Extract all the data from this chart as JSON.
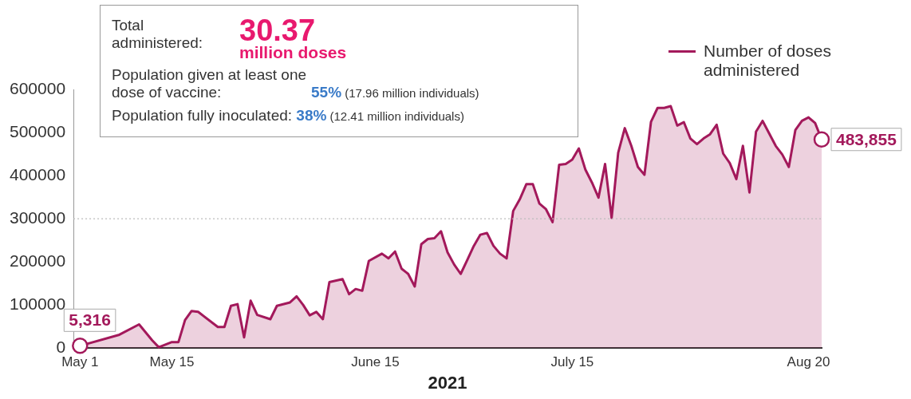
{
  "chart_data": {
    "type": "area",
    "xlabel": "2021",
    "xlim": [
      "2021-04-30",
      "2021-08-22"
    ],
    "xticks": [
      {
        "value": "2021-05-01",
        "label": "May 1"
      },
      {
        "value": "2021-05-15",
        "label": "May 15"
      },
      {
        "value": "2021-06-15",
        "label": "June 15"
      },
      {
        "value": "2021-07-15",
        "label": "July 15"
      },
      {
        "value": "2021-08-20",
        "label": "Aug 20"
      }
    ],
    "ylim": [
      0,
      600000
    ],
    "yticks": [
      0,
      100000,
      200000,
      300000,
      400000,
      500000,
      600000
    ],
    "grid": false,
    "legend": "top right",
    "marker": "none",
    "line_style": "solid",
    "ref_lines": [
      {
        "axis": "y",
        "value": 300000,
        "color": "#bbbbbb",
        "line_style": "dotted"
      }
    ],
    "series": [
      {
        "name": "Number of doses administered",
        "color": "#a3195b",
        "x": [
          "2021-05-01",
          "2021-05-07",
          "2021-05-10",
          "2021-05-12",
          "2021-05-13",
          "2021-05-15",
          "2021-05-16",
          "2021-05-17",
          "2021-05-18",
          "2021-05-19",
          "2021-05-22",
          "2021-05-23",
          "2021-05-24",
          "2021-05-25",
          "2021-05-26",
          "2021-05-27",
          "2021-05-28",
          "2021-05-30",
          "2021-05-31",
          "2021-06-02",
          "2021-06-03",
          "2021-06-04",
          "2021-06-05",
          "2021-06-06",
          "2021-06-07",
          "2021-06-08",
          "2021-06-10",
          "2021-06-11",
          "2021-06-12",
          "2021-06-13",
          "2021-06-14",
          "2021-06-16",
          "2021-06-17",
          "2021-06-18",
          "2021-06-19",
          "2021-06-20",
          "2021-06-21",
          "2021-06-22",
          "2021-06-23",
          "2021-06-24",
          "2021-06-25",
          "2021-06-26",
          "2021-06-27",
          "2021-06-28",
          "2021-06-29",
          "2021-06-30",
          "2021-07-01",
          "2021-07-02",
          "2021-07-03",
          "2021-07-04",
          "2021-07-05",
          "2021-07-06",
          "2021-07-07",
          "2021-07-08",
          "2021-07-09",
          "2021-07-10",
          "2021-07-11",
          "2021-07-12",
          "2021-07-13",
          "2021-07-14",
          "2021-07-15",
          "2021-07-16",
          "2021-07-17",
          "2021-07-18",
          "2021-07-19",
          "2021-07-20",
          "2021-07-21",
          "2021-07-22",
          "2021-07-23",
          "2021-07-24",
          "2021-07-25",
          "2021-07-26",
          "2021-07-27",
          "2021-07-28",
          "2021-07-29",
          "2021-07-30",
          "2021-07-31",
          "2021-08-01",
          "2021-08-02",
          "2021-08-03",
          "2021-08-04",
          "2021-08-05",
          "2021-08-06",
          "2021-08-07",
          "2021-08-08",
          "2021-08-09",
          "2021-08-10",
          "2021-08-11",
          "2021-08-12",
          "2021-08-13",
          "2021-08-15",
          "2021-08-16",
          "2021-08-17",
          "2021-08-18",
          "2021-08-19",
          "2021-08-20",
          "2021-08-21",
          "2021-08-22"
        ],
        "values": [
          5316,
          31000,
          55000,
          18000,
          2000,
          14000,
          14000,
          65000,
          86000,
          84000,
          49000,
          49000,
          98000,
          102000,
          25000,
          110000,
          77000,
          67000,
          98000,
          106000,
          120000,
          100000,
          76000,
          84000,
          67000,
          153000,
          160000,
          125000,
          137000,
          133000,
          202000,
          219000,
          208000,
          224000,
          184000,
          172000,
          143000,
          241000,
          253000,
          255000,
          271000,
          222000,
          194000,
          172000,
          204000,
          237000,
          263000,
          267000,
          237000,
          219000,
          208000,
          318000,
          345000,
          380000,
          380000,
          335000,
          322000,
          292000,
          425000,
          427000,
          437000,
          463000,
          414000,
          384000,
          349000,
          427000,
          302000,
          453000,
          510000,
          469000,
          420000,
          402000,
          525000,
          557000,
          557000,
          561000,
          516000,
          524000,
          486000,
          473000,
          486000,
          496000,
          518000,
          451000,
          429000,
          392000,
          469000,
          361000,
          502000,
          527000,
          469000,
          449000,
          420000,
          506000,
          527000,
          535000,
          522000,
          483855
        ]
      }
    ],
    "annotations": [
      "Total administered:",
      "30.37",
      "million doses",
      "Population given at least one dose of vaccine:",
      "55%",
      "(17.96 million individuals)",
      "Population fully inoculated:",
      "38%",
      "(12.41 million individuals)",
      {
        "text": "5,316",
        "x": "2021-05-01",
        "y": 5316
      },
      {
        "text": "483,855",
        "x": "2021-08-22",
        "y": 483855
      }
    ]
  }
}
